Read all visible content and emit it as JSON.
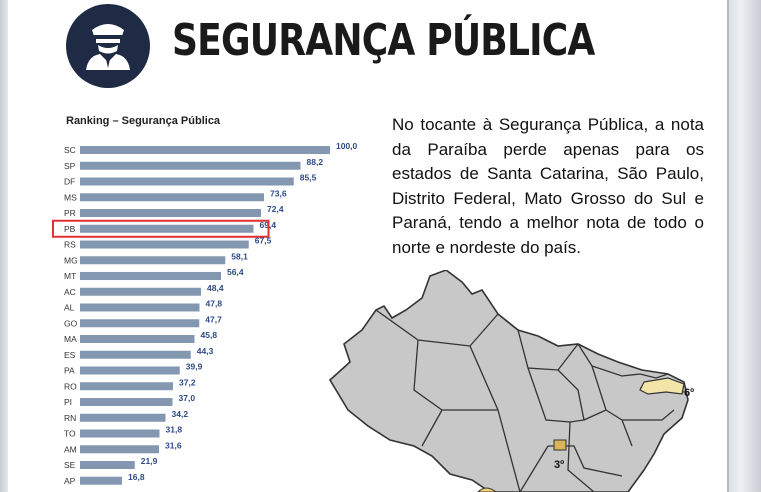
{
  "header": {
    "title": "SEGURANÇA PÚBLICA",
    "icon": "police-officer-icon"
  },
  "description": "No tocante à Segurança Pública, a nota da Paraíba perde apenas para os estados de Santa Catarina, São Paulo, Distrito Federal, Mato Grosso do Sul e Paraná, tendo a melhor nota de todo o norte e nordeste do país.",
  "chart_data": {
    "type": "bar",
    "orientation": "horizontal",
    "title": "Ranking – Segurança Pública",
    "categories": [
      "SC",
      "SP",
      "DF",
      "MS",
      "PR",
      "PB",
      "RS",
      "MG",
      "MT",
      "AC",
      "AL",
      "GO",
      "MA",
      "ES",
      "PA",
      "RO",
      "PI",
      "RN",
      "TO",
      "AM",
      "SE",
      "AP"
    ],
    "values": [
      100.0,
      88.2,
      85.5,
      73.6,
      72.4,
      69.4,
      67.5,
      58.1,
      56.4,
      48.4,
      47.8,
      47.7,
      45.8,
      44.3,
      39.9,
      37.2,
      37.0,
      34.2,
      31.8,
      31.6,
      21.9,
      16.8
    ],
    "value_labels": [
      "100,0",
      "88,2",
      "85,5",
      "73,6",
      "72,4",
      "69,4",
      "67,5",
      "58,1",
      "56,4",
      "48,4",
      "47,8",
      "47,7",
      "45,8",
      "44,3",
      "39,9",
      "37,2",
      "37,0",
      "34,2",
      "31,8",
      "31,6",
      "21,9",
      "16,8"
    ],
    "highlighted_category": "PB",
    "highlight_color": "#e03030",
    "bar_color": "#8497b0",
    "xlim": [
      0,
      100
    ]
  },
  "map": {
    "labels": [
      "6º",
      "3º"
    ],
    "land_color": "#c8c8c8",
    "highlight_color": "#f3e4a8",
    "border_color": "#333333"
  }
}
